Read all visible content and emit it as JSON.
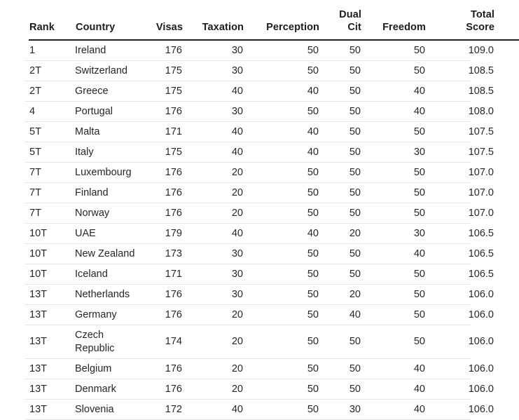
{
  "colors": {
    "header_border": "#1f1f1f",
    "row_border": "#e4e4e4",
    "header_text": "#1c1c1c",
    "cell_text": "#262626",
    "background": "#ffffff"
  },
  "table": {
    "columns": [
      {
        "key": "rank",
        "label": "Rank"
      },
      {
        "key": "country",
        "label": "Country"
      },
      {
        "key": "visas",
        "label": "Visas"
      },
      {
        "key": "taxation",
        "label": "Taxation"
      },
      {
        "key": "perception",
        "label": "Perception"
      },
      {
        "key": "dual_cit",
        "label": "Dual\nCit"
      },
      {
        "key": "freedom",
        "label": "Freedom"
      },
      {
        "key": "total_score",
        "label": "Total\nScore"
      }
    ],
    "rows": [
      {
        "rank": "1",
        "country": "Ireland",
        "visas": "176",
        "taxation": "30",
        "perception": "50",
        "dual_cit": "50",
        "freedom": "50",
        "total_score": "109.0"
      },
      {
        "rank": "2T",
        "country": "Switzerland",
        "visas": "175",
        "taxation": "30",
        "perception": "50",
        "dual_cit": "50",
        "freedom": "50",
        "total_score": "108.5"
      },
      {
        "rank": "2T",
        "country": "Greece",
        "visas": "175",
        "taxation": "40",
        "perception": "40",
        "dual_cit": "50",
        "freedom": "40",
        "total_score": "108.5"
      },
      {
        "rank": "4",
        "country": "Portugal",
        "visas": "176",
        "taxation": "30",
        "perception": "50",
        "dual_cit": "50",
        "freedom": "40",
        "total_score": "108.0"
      },
      {
        "rank": "5T",
        "country": "Malta",
        "visas": "171",
        "taxation": "40",
        "perception": "40",
        "dual_cit": "50",
        "freedom": "50",
        "total_score": "107.5"
      },
      {
        "rank": "5T",
        "country": "Italy",
        "visas": "175",
        "taxation": "40",
        "perception": "40",
        "dual_cit": "50",
        "freedom": "30",
        "total_score": "107.5"
      },
      {
        "rank": "7T",
        "country": "Luxembourg",
        "visas": "176",
        "taxation": "20",
        "perception": "50",
        "dual_cit": "50",
        "freedom": "50",
        "total_score": "107.0"
      },
      {
        "rank": "7T",
        "country": "Finland",
        "visas": "176",
        "taxation": "20",
        "perception": "50",
        "dual_cit": "50",
        "freedom": "50",
        "total_score": "107.0"
      },
      {
        "rank": "7T",
        "country": "Norway",
        "visas": "176",
        "taxation": "20",
        "perception": "50",
        "dual_cit": "50",
        "freedom": "50",
        "total_score": "107.0"
      },
      {
        "rank": "10T",
        "country": "UAE",
        "visas": "179",
        "taxation": "40",
        "perception": "40",
        "dual_cit": "20",
        "freedom": "30",
        "total_score": "106.5"
      },
      {
        "rank": "10T",
        "country": "New Zealand",
        "visas": "173",
        "taxation": "30",
        "perception": "50",
        "dual_cit": "50",
        "freedom": "40",
        "total_score": "106.5"
      },
      {
        "rank": "10T",
        "country": "Iceland",
        "visas": "171",
        "taxation": "30",
        "perception": "50",
        "dual_cit": "50",
        "freedom": "50",
        "total_score": "106.5"
      },
      {
        "rank": "13T",
        "country": "Netherlands",
        "visas": "176",
        "taxation": "30",
        "perception": "50",
        "dual_cit": "20",
        "freedom": "50",
        "total_score": "106.0"
      },
      {
        "rank": "13T",
        "country": "Germany",
        "visas": "176",
        "taxation": "20",
        "perception": "50",
        "dual_cit": "40",
        "freedom": "50",
        "total_score": "106.0"
      },
      {
        "rank": "13T",
        "country": "Czech Republic",
        "visas": "174",
        "taxation": "20",
        "perception": "50",
        "dual_cit": "50",
        "freedom": "50",
        "total_score": "106.0"
      },
      {
        "rank": "13T",
        "country": "Belgium",
        "visas": "176",
        "taxation": "20",
        "perception": "50",
        "dual_cit": "50",
        "freedom": "40",
        "total_score": "106.0"
      },
      {
        "rank": "13T",
        "country": "Denmark",
        "visas": "176",
        "taxation": "20",
        "perception": "50",
        "dual_cit": "50",
        "freedom": "40",
        "total_score": "106.0"
      },
      {
        "rank": "13T",
        "country": "Slovenia",
        "visas": "172",
        "taxation": "40",
        "perception": "50",
        "dual_cit": "30",
        "freedom": "40",
        "total_score": "106.0"
      }
    ]
  }
}
